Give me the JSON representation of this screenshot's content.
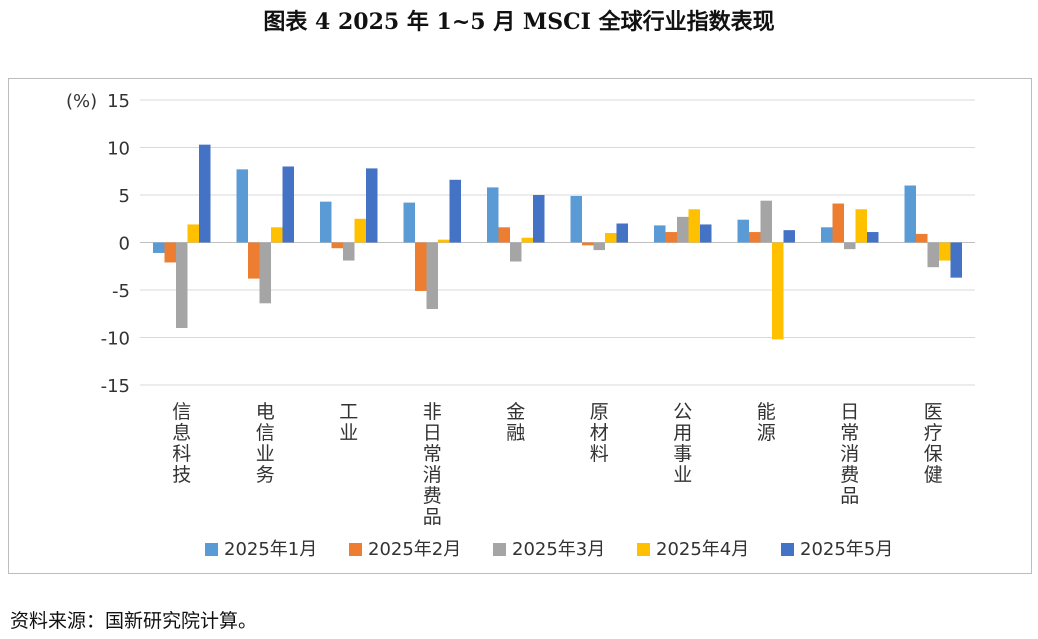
{
  "title": "图表 4  2025 年 1~5 月 MSCI 全球行业指数表现",
  "source": "资料来源：国新研究院计算。",
  "chart_data": {
    "type": "bar",
    "unit_label": "(%)",
    "ylim": [
      -15,
      15
    ],
    "yticks": [
      15,
      10,
      5,
      0,
      -5,
      -10,
      -15
    ],
    "grid": true,
    "legend_position": "bottom",
    "categories": [
      "信息科技",
      "电信业务",
      "工业",
      "非日常消费品",
      "金融",
      "原材料",
      "公用事业",
      "能源",
      "日常消费品",
      "医疗保健"
    ],
    "series": [
      {
        "name": "2025年1月",
        "color": "#5B9BD5",
        "values": [
          -1.1,
          7.7,
          4.3,
          4.2,
          5.8,
          4.9,
          1.8,
          2.4,
          1.6,
          6.0
        ]
      },
      {
        "name": "2025年2月",
        "color": "#ED7D31",
        "values": [
          -2.1,
          -3.8,
          -0.6,
          -5.1,
          1.6,
          -0.3,
          1.1,
          1.1,
          4.1,
          0.9
        ]
      },
      {
        "name": "2025年3月",
        "color": "#A5A5A5",
        "values": [
          -9.0,
          -6.4,
          -1.9,
          -7.0,
          -2.0,
          -0.8,
          2.7,
          4.4,
          -0.7,
          -2.6
        ]
      },
      {
        "name": "2025年4月",
        "color": "#FFC000",
        "values": [
          1.9,
          1.6,
          2.5,
          0.3,
          0.5,
          1.0,
          3.5,
          -10.2,
          3.5,
          -1.9
        ]
      },
      {
        "name": "2025年5月",
        "color": "#4472C4",
        "values": [
          10.3,
          8.0,
          7.8,
          6.6,
          5.0,
          2.0,
          1.9,
          1.3,
          1.1,
          -3.7
        ]
      }
    ]
  }
}
